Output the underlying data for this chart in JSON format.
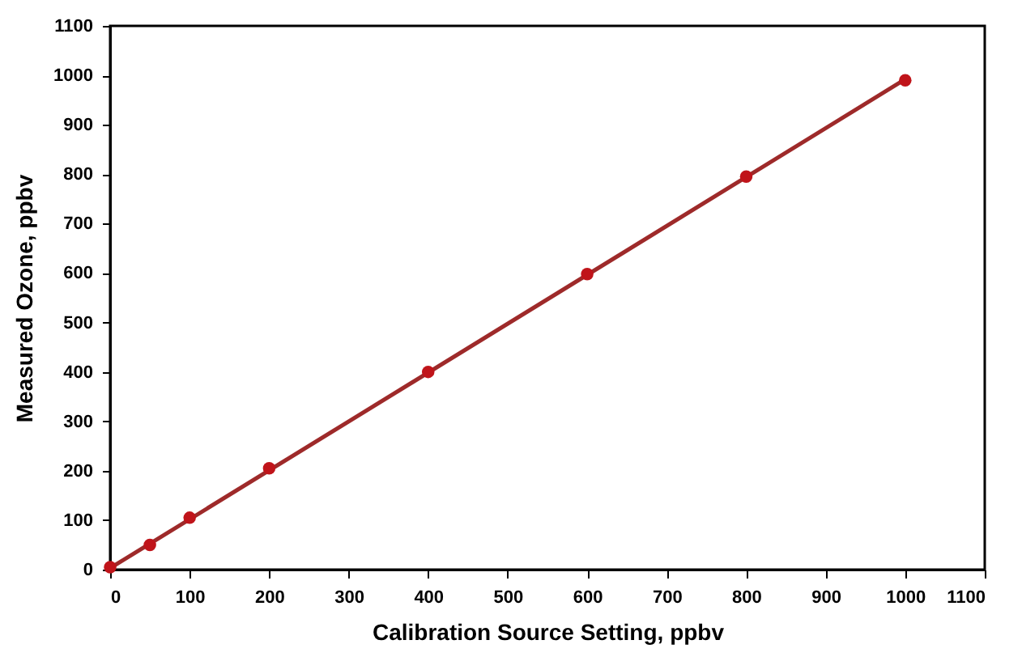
{
  "chart_data": {
    "type": "scatter",
    "xlabel": "Calibration Source Setting, ppbv",
    "ylabel": "Measured Ozone, ppbv",
    "xlim": [
      0,
      1100
    ],
    "ylim": [
      0,
      1100
    ],
    "xticks": [
      0,
      100,
      200,
      300,
      400,
      500,
      600,
      700,
      800,
      900,
      1000,
      1100
    ],
    "yticks": [
      0,
      100,
      200,
      300,
      400,
      500,
      600,
      700,
      800,
      900,
      1000,
      1100
    ],
    "grid": false,
    "series": [
      {
        "type": "line",
        "color": "#9e2a2a",
        "x": [
          0,
          1000
        ],
        "values": [
          3,
          992
        ]
      },
      {
        "color": "#c0141a",
        "x": [
          0,
          50,
          100,
          200,
          400,
          600,
          800,
          1000
        ],
        "values": [
          5,
          50,
          105,
          205,
          400,
          598,
          795,
          990
        ],
        "marker": "circle"
      }
    ]
  }
}
